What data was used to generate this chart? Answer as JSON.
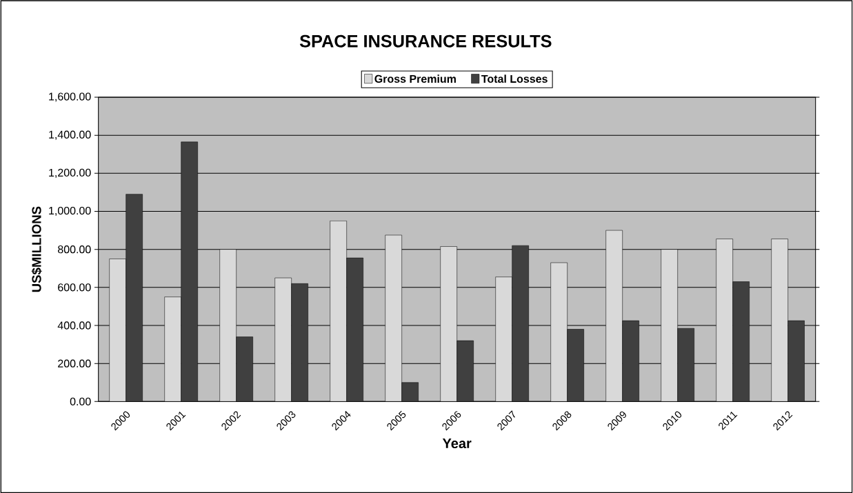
{
  "chart_data": {
    "type": "bar",
    "title": "SPACE INSURANCE RESULTS",
    "xlabel": "Year",
    "ylabel": "US$MILLIONS",
    "categories": [
      "2000",
      "2001",
      "2002",
      "2003",
      "2004",
      "2005",
      "2006",
      "2007",
      "2008",
      "2009",
      "2010",
      "2011",
      "2012"
    ],
    "series": [
      {
        "name": "Gross Premium",
        "color": "#d9d9d9",
        "values": [
          750,
          550,
          800,
          650,
          950,
          875,
          815,
          655,
          730,
          900,
          800,
          855,
          855
        ]
      },
      {
        "name": "Total Losses",
        "color": "#404040",
        "values": [
          1090,
          1365,
          340,
          620,
          755,
          100,
          320,
          820,
          380,
          425,
          385,
          630,
          425
        ]
      }
    ],
    "ylim": [
      0,
      1600
    ],
    "yticks": [
      {
        "value": 0,
        "label": "0.00"
      },
      {
        "value": 200,
        "label": "200.00"
      },
      {
        "value": 400,
        "label": "400.00"
      },
      {
        "value": 600,
        "label": "600.00"
      },
      {
        "value": 800,
        "label": "800.00"
      },
      {
        "value": 1000,
        "label": "1,000.00"
      },
      {
        "value": 1200,
        "label": "1,200.00"
      },
      {
        "value": 1400,
        "label": "1,400.00"
      },
      {
        "value": 1600,
        "label": "1,600.00"
      }
    ],
    "grid": "y",
    "legend": "top"
  }
}
